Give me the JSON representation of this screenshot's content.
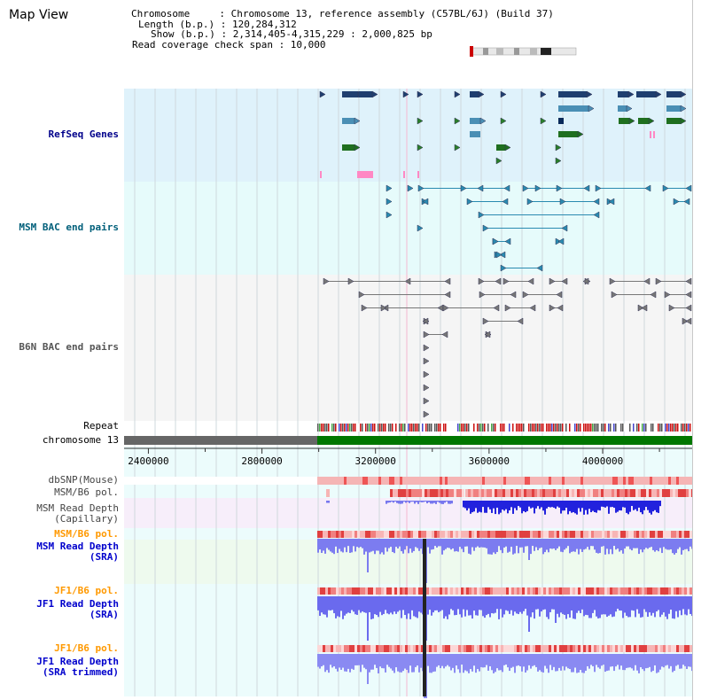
{
  "title": "Map View",
  "info": {
    "chromosome_line": "Chromosome     : Chromosome 13, reference assembly (C57BL/6J) (Build 37)",
    "length_line": "Length (b.p.) : 120,284,312",
    "show_line": "Show (b.p.) : 2,314,405-4,315,229 : 2,000,825 bp",
    "coverage_line": "Read coverage check span : 10,000"
  },
  "tracks": {
    "refseq": "RefSeq Genes",
    "msm_bac": "MSM BAC end pairs",
    "b6n_bac": "B6N BAC end pairs",
    "repeat": "Repeat",
    "chromosome": "chromosome 13",
    "dbsnp": "dbSNP(Mouse)",
    "msm_b6_pol_1": "MSM/B6 pol.",
    "msm_read_depth_cap_1": "MSM Read Depth",
    "msm_read_depth_cap_2": "(Capillary)",
    "msm_b6_pol_2": "MSM/B6 pol.",
    "msm_read_depth_sra_1": "MSM Read Depth",
    "msm_read_depth_sra_2": "(SRA)",
    "jf1_b6_pol_1": "JF1/B6 pol.",
    "jf1_read_depth_sra_1": "JF1 Read Depth",
    "jf1_read_depth_sra_2": "(SRA)",
    "jf1_b6_pol_2": "JF1/B6 pol.",
    "jf1_read_depth_trim_1": "JF1 Read Depth",
    "jf1_read_depth_trim_2": "(SRA trimmed)"
  },
  "axis": {
    "ticks": [
      "2400000",
      "2800000",
      "3200000",
      "3600000",
      "4000000"
    ],
    "start": 2314405,
    "end": 4315229
  },
  "colors": {
    "refseq_bg": "#dff2fb",
    "msm_bac_bg": "#e6fbfb",
    "b6n_bac_bg": "#f5f5f5",
    "refseq_label": "#00008b",
    "msm_bac_label": "#005f7a",
    "b6n_bac_label": "#555555",
    "pol_label": "#ff9900",
    "depth_label": "#0000cc",
    "chromosome_green": "#007700",
    "chromosome_gray": "#666666",
    "depth_bar": "#3333ee"
  }
}
